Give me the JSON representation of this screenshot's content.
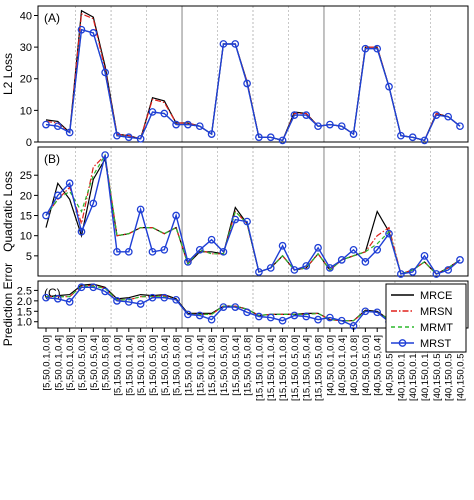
{
  "x_labels": [
    "[5,50,0.1,0.0]",
    "[5,50,0.1,0.4]",
    "[5,50,0.1,0.8]",
    "[5,50,0.5,0.0]",
    "[5,50,0.5,0.4]",
    "[5,50,0.5,0.8]",
    "[5,150,0.1,0.0]",
    "[5,150,0.1,0.4]",
    "[5,150,0.1,0.8]",
    "[5,150,0.5,0.0]",
    "[5,150,0.5,0.4]",
    "[5,150,0.5,0.8]",
    "[15,50,0.1,0.0]",
    "[15,50,0.1,0.4]",
    "[15,50,0.1,0.8]",
    "[15,50,0.5,0.0]",
    "[15,50,0.5,0.4]",
    "[15,50,0.5,0.8]",
    "[15,150,0.1,0.0]",
    "[15,150,0.1,0.4]",
    "[15,150,0.1,0.8]",
    "[15,150,0.5,0.0]",
    "[15,150,0.5,0.4]",
    "[15,150,0.5,0.8]",
    "[40,50,0.1,0.0]",
    "[40,50,0.1,0.4]",
    "[40,50,0.1,0.8]",
    "[40,50,0.5,0.0]",
    "[40,50,0.5,0.4]",
    "[40,50,0.5,0.8]",
    "[40,150,0.1,0.0]",
    "[40,150,0.1,0.4]",
    "[40,150,0.1,0.8]",
    "[40,150,0.5,0.0]",
    "[40,150,0.5,0.4]",
    "[40,150,0.5,0.8]"
  ],
  "legend": {
    "placement": "top-right of panel C",
    "entries": [
      {
        "name": "MRCE",
        "color": "#000000",
        "dash": "solid",
        "marker": "none"
      },
      {
        "name": "MRSN",
        "color": "#e0201b",
        "dash": "dash-dot",
        "marker": "none"
      },
      {
        "name": "MRMT",
        "color": "#2db82d",
        "dash": "dashed",
        "marker": "none"
      },
      {
        "name": "MRST",
        "color": "#1f3fd6",
        "dash": "solid",
        "marker": "circle"
      }
    ]
  },
  "chart_data": [
    {
      "type": "line",
      "panel_label": "(A)",
      "ylabel": "L2 Loss",
      "ylim": [
        0,
        43
      ],
      "yticks": [
        0,
        10,
        20,
        30,
        40
      ],
      "grid": "vertical group separators",
      "series": [
        {
          "name": "MRCE",
          "values": [
            7,
            6.5,
            3,
            41.5,
            39.5,
            24,
            2.5,
            2,
            1,
            14,
            13,
            6,
            6,
            5,
            2.5,
            31,
            31,
            19,
            1.5,
            1.5,
            0.5,
            9.5,
            9,
            5,
            5.5,
            5,
            2.5,
            30,
            30,
            17.5,
            2,
            1.5,
            0.5,
            9,
            8,
            5
          ]
        },
        {
          "name": "MRSN",
          "values": [
            6.5,
            6,
            3,
            40.5,
            39,
            23,
            2.5,
            2,
            1,
            13.5,
            12.5,
            6,
            6,
            5,
            2.5,
            31,
            31,
            19,
            1.5,
            1.5,
            0.5,
            9,
            9,
            5,
            5.5,
            5,
            2.5,
            30,
            30,
            17.5,
            2,
            1.5,
            0.5,
            9,
            8,
            5
          ]
        },
        {
          "name": "MRMT",
          "values": [
            5.5,
            5,
            3,
            35.5,
            34.5,
            22,
            2,
            1.5,
            1,
            9.5,
            9,
            5.5,
            5.5,
            5,
            2.5,
            31,
            31,
            18.5,
            1.5,
            1.5,
            0.5,
            8.5,
            8.5,
            5,
            5.5,
            5,
            2.5,
            29.5,
            29.5,
            17.5,
            2,
            1.5,
            0.5,
            8.5,
            8,
            5
          ]
        },
        {
          "name": "MRST",
          "values": [
            5.5,
            5,
            3,
            35.5,
            34.5,
            22,
            2,
            1.5,
            1,
            9.5,
            9,
            5.5,
            5.5,
            5,
            2.5,
            31,
            31,
            18.5,
            1.5,
            1.5,
            0.5,
            8.5,
            8.5,
            5,
            5.5,
            5,
            2.5,
            29.5,
            29.5,
            17.5,
            2,
            1.5,
            0.5,
            8.5,
            8,
            5
          ]
        }
      ]
    },
    {
      "type": "line",
      "panel_label": "(B)",
      "ylabel": "Quadratic Loss",
      "ylim": [
        0,
        32
      ],
      "yticks": [
        5,
        10,
        15,
        20,
        25
      ],
      "grid": "vertical group separators",
      "series": [
        {
          "name": "MRCE",
          "values": [
            12,
            23,
            19,
            10,
            24,
            29,
            10,
            10.5,
            12,
            12,
            10.5,
            12,
            3,
            6,
            6,
            5.5,
            17,
            13,
            1,
            2,
            5,
            1.5,
            2,
            5.5,
            1.5,
            4,
            5,
            6,
            16,
            11,
            0.5,
            1.5,
            3.5,
            0.5,
            2,
            4
          ]
        },
        {
          "name": "MRSN",
          "values": [
            15,
            19,
            22,
            13,
            27,
            30,
            10,
            10.5,
            12,
            12,
            10.5,
            12,
            3,
            6.5,
            5.5,
            5.5,
            16,
            13,
            1,
            2,
            5,
            1.5,
            2,
            5.5,
            1.5,
            4,
            5,
            6,
            10,
            12,
            0.5,
            1.5,
            3.5,
            0.5,
            2,
            4
          ]
        },
        {
          "name": "MRMT",
          "values": [
            15,
            19,
            21,
            16,
            25,
            30,
            10,
            10.5,
            12,
            12,
            10.5,
            12,
            3,
            6.5,
            5.5,
            5.5,
            16,
            13,
            1,
            2,
            5,
            1.5,
            2,
            5.5,
            1.5,
            4,
            5,
            6,
            8,
            11,
            0.5,
            1.5,
            3.5,
            0.5,
            2,
            4
          ]
        },
        {
          "name": "MRST",
          "values": [
            15,
            20,
            23,
            11,
            18,
            30,
            6,
            6,
            16.5,
            6,
            6.5,
            15,
            3.5,
            6.5,
            9,
            6,
            14,
            13.5,
            1,
            2,
            7.5,
            1.5,
            2.5,
            7,
            2,
            4,
            6.5,
            3.5,
            6.5,
            10.5,
            0.5,
            1,
            5,
            0.5,
            1.5,
            4
          ]
        }
      ]
    },
    {
      "type": "line",
      "panel_label": "(C)",
      "ylabel": "Prediction Error",
      "ylim": [
        0.7,
        2.95
      ],
      "yticks": [
        1.0,
        1.5,
        2.0,
        2.5
      ],
      "grid": "vertical group separators",
      "series": [
        {
          "name": "MRCE",
          "values": [
            2.2,
            2.25,
            2.3,
            2.75,
            2.8,
            2.65,
            2.1,
            2.15,
            2.3,
            2.25,
            2.3,
            2.1,
            1.4,
            1.4,
            1.4,
            1.75,
            1.75,
            1.6,
            1.3,
            1.35,
            1.35,
            1.35,
            1.4,
            1.4,
            1.1,
            1.05,
            1.05,
            1.55,
            1.5,
            1.1,
            1.1,
            1.05,
            0.9,
            1.2,
            1.15,
            1.0
          ]
        },
        {
          "name": "MRSN",
          "values": [
            2.2,
            2.2,
            2.2,
            2.7,
            2.75,
            2.6,
            2.05,
            2.05,
            2.2,
            2.2,
            2.25,
            2.05,
            1.35,
            1.35,
            1.35,
            1.75,
            1.75,
            1.6,
            1.3,
            1.35,
            1.35,
            1.35,
            1.35,
            1.4,
            1.1,
            1.05,
            1.05,
            1.5,
            1.45,
            1.1,
            1.1,
            1.05,
            0.9,
            1.2,
            1.15,
            1.0
          ]
        },
        {
          "name": "MRMT",
          "values": [
            2.2,
            2.2,
            2.2,
            2.7,
            2.7,
            2.6,
            2.05,
            2.05,
            2.2,
            2.2,
            2.2,
            2.05,
            1.35,
            1.35,
            1.35,
            1.75,
            1.75,
            1.6,
            1.3,
            1.35,
            1.35,
            1.35,
            1.35,
            1.4,
            1.1,
            1.05,
            1.05,
            1.5,
            1.45,
            1.1,
            1.1,
            1.05,
            0.9,
            1.2,
            1.15,
            1.0
          ]
        },
        {
          "name": "MRST",
          "values": [
            2.15,
            2.1,
            1.95,
            2.65,
            2.65,
            2.45,
            2.0,
            1.95,
            1.85,
            2.15,
            2.15,
            2.05,
            1.35,
            1.3,
            1.1,
            1.7,
            1.7,
            1.45,
            1.25,
            1.2,
            1.05,
            1.3,
            1.25,
            1.1,
            1.2,
            1.05,
            0.8,
            1.5,
            1.45,
            1.0,
            1.05,
            1.0,
            0.75,
            1.2,
            1.1,
            0.85
          ]
        }
      ]
    }
  ]
}
